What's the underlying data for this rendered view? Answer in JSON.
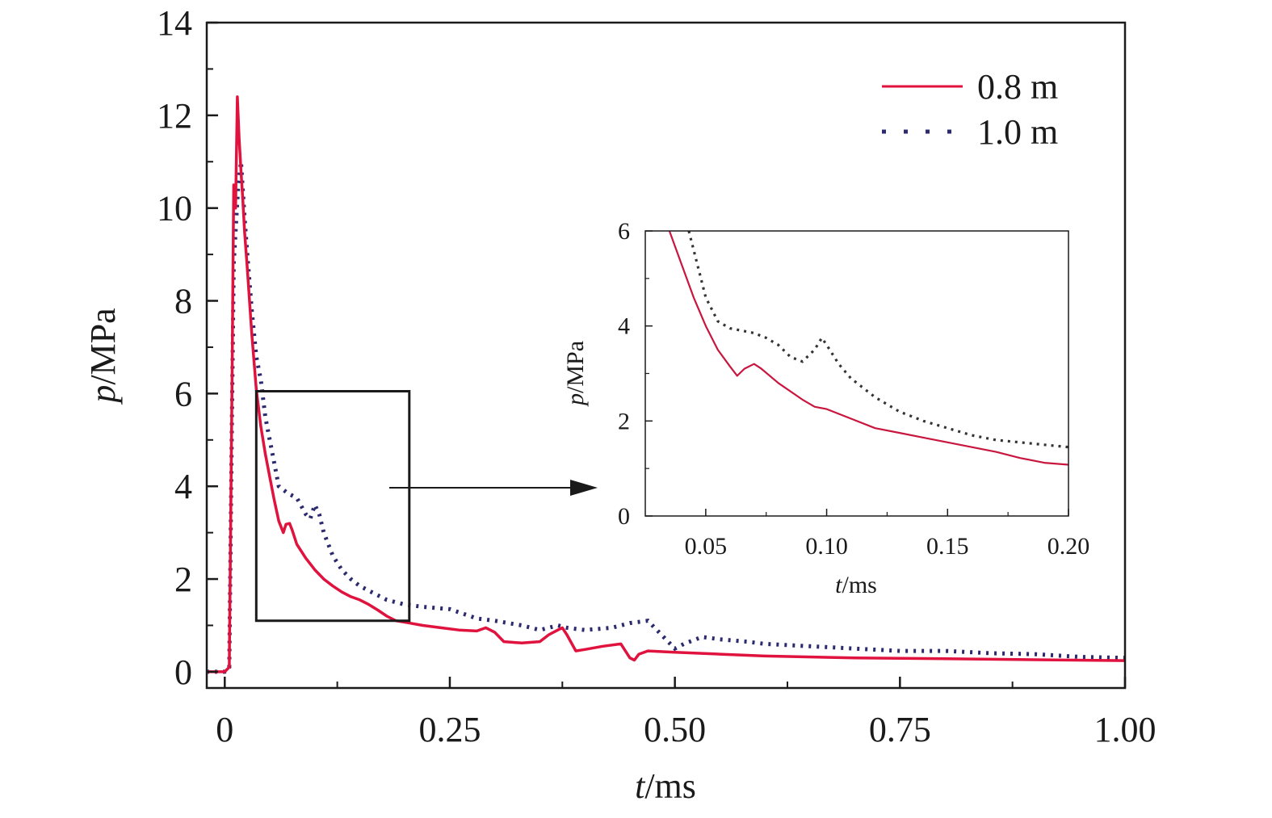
{
  "colors": {
    "series_08": "#e0123e",
    "series_10": "#2b2a6e",
    "inset_08": "#c8163e",
    "inset_10": "#333333",
    "axis": "#1a1a1a"
  },
  "chart_data": [
    {
      "type": "line",
      "xlabel_var": "t",
      "xlabel_unit": "/ms",
      "ylabel_var": "p",
      "ylabel_unit": "/MPa",
      "xlim": [
        -0.02,
        1.0
      ],
      "ylim": [
        -0.35,
        14
      ],
      "xticks": [
        0,
        0.25,
        0.5,
        0.75,
        1.0
      ],
      "xtick_labels": [
        "0",
        "0.25",
        "0.50",
        "0.75",
        "1.00"
      ],
      "yticks": [
        0,
        2,
        4,
        6,
        8,
        10,
        12,
        14
      ],
      "ytick_labels": [
        "0",
        "2",
        "4",
        "6",
        "8",
        "10",
        "12",
        "14"
      ],
      "legend_position": "top-right",
      "zoom_box": {
        "x": [
          0.035,
          0.205
        ],
        "y": [
          1.1,
          6.05
        ]
      },
      "series": [
        {
          "name": "0.8 m",
          "style": "solid",
          "x": [
            -0.02,
            0.0,
            0.005,
            0.008,
            0.01,
            0.012,
            0.014,
            0.016,
            0.018,
            0.02,
            0.022,
            0.025,
            0.03,
            0.035,
            0.04,
            0.045,
            0.05,
            0.055,
            0.06,
            0.065,
            0.068,
            0.072,
            0.075,
            0.08,
            0.09,
            0.1,
            0.11,
            0.12,
            0.13,
            0.14,
            0.15,
            0.16,
            0.17,
            0.18,
            0.19,
            0.2,
            0.22,
            0.24,
            0.26,
            0.28,
            0.29,
            0.3,
            0.31,
            0.33,
            0.35,
            0.36,
            0.37,
            0.375,
            0.38,
            0.39,
            0.4,
            0.42,
            0.44,
            0.45,
            0.455,
            0.46,
            0.47,
            0.5,
            0.55,
            0.6,
            0.7,
            0.8,
            0.9,
            1.0
          ],
          "values": [
            0.0,
            0.0,
            0.1,
            6.0,
            10.5,
            10.0,
            12.4,
            11.5,
            10.8,
            10.2,
            9.5,
            8.7,
            7.3,
            6.1,
            5.3,
            4.7,
            4.2,
            3.7,
            3.25,
            3.0,
            3.18,
            3.2,
            3.05,
            2.75,
            2.45,
            2.2,
            2.0,
            1.85,
            1.72,
            1.62,
            1.55,
            1.45,
            1.33,
            1.2,
            1.1,
            1.07,
            1.0,
            0.95,
            0.9,
            0.88,
            0.95,
            0.85,
            0.65,
            0.62,
            0.65,
            0.8,
            0.9,
            0.95,
            0.8,
            0.45,
            0.48,
            0.55,
            0.6,
            0.3,
            0.25,
            0.38,
            0.45,
            0.42,
            0.38,
            0.34,
            0.3,
            0.28,
            0.26,
            0.24
          ]
        },
        {
          "name": "1.0 m",
          "style": "dotted",
          "x": [
            -0.02,
            0.0,
            0.005,
            0.008,
            0.01,
            0.012,
            0.015,
            0.018,
            0.02,
            0.022,
            0.025,
            0.03,
            0.035,
            0.04,
            0.045,
            0.05,
            0.055,
            0.06,
            0.07,
            0.08,
            0.09,
            0.095,
            0.1,
            0.105,
            0.11,
            0.12,
            0.13,
            0.14,
            0.15,
            0.16,
            0.17,
            0.18,
            0.19,
            0.2,
            0.22,
            0.25,
            0.28,
            0.3,
            0.33,
            0.35,
            0.37,
            0.38,
            0.4,
            0.43,
            0.45,
            0.47,
            0.5,
            0.51,
            0.53,
            0.55,
            0.58,
            0.6,
            0.65,
            0.7,
            0.75,
            0.8,
            0.85,
            0.9,
            0.95,
            1.0
          ],
          "values": [
            0.0,
            0.0,
            0.1,
            5.5,
            8.8,
            9.5,
            10.5,
            11.0,
            10.4,
            9.8,
            9.0,
            7.8,
            6.8,
            6.3,
            5.5,
            5.0,
            4.5,
            4.0,
            3.85,
            3.75,
            3.4,
            3.3,
            3.6,
            3.4,
            3.0,
            2.5,
            2.2,
            2.0,
            1.85,
            1.75,
            1.65,
            1.55,
            1.5,
            1.45,
            1.4,
            1.35,
            1.15,
            1.1,
            1.0,
            0.9,
            1.0,
            0.95,
            0.9,
            0.95,
            1.05,
            1.1,
            0.5,
            0.6,
            0.75,
            0.7,
            0.65,
            0.6,
            0.55,
            0.5,
            0.45,
            0.45,
            0.4,
            0.38,
            0.32,
            0.3
          ]
        }
      ]
    },
    {
      "type": "line",
      "xlabel_var": "t",
      "xlabel_unit": "/ms",
      "ylabel_var": "p",
      "ylabel_unit": "/MPa",
      "xlim": [
        0.025,
        0.2
      ],
      "ylim": [
        0,
        6
      ],
      "xticks": [
        0.05,
        0.1,
        0.15,
        0.2
      ],
      "xtick_labels": [
        "0.05",
        "0.10",
        "0.15",
        "0.20"
      ],
      "yticks": [
        0,
        2,
        4,
        6
      ],
      "ytick_labels": [
        "0",
        "2",
        "4",
        "6"
      ],
      "series": [
        {
          "style": "solid",
          "x": [
            0.035,
            0.04,
            0.045,
            0.05,
            0.055,
            0.06,
            0.063,
            0.066,
            0.07,
            0.073,
            0.08,
            0.09,
            0.095,
            0.1,
            0.11,
            0.12,
            0.13,
            0.14,
            0.15,
            0.16,
            0.17,
            0.18,
            0.19,
            0.2
          ],
          "values": [
            6.0,
            5.3,
            4.6,
            4.0,
            3.5,
            3.15,
            2.95,
            3.1,
            3.2,
            3.1,
            2.8,
            2.45,
            2.3,
            2.25,
            2.05,
            1.85,
            1.75,
            1.65,
            1.55,
            1.45,
            1.35,
            1.22,
            1.12,
            1.08
          ]
        },
        {
          "style": "dotted",
          "x": [
            0.043,
            0.05,
            0.055,
            0.06,
            0.065,
            0.07,
            0.075,
            0.08,
            0.085,
            0.09,
            0.095,
            0.098,
            0.1,
            0.105,
            0.11,
            0.12,
            0.13,
            0.14,
            0.15,
            0.16,
            0.17,
            0.18,
            0.19,
            0.2
          ],
          "values": [
            6.0,
            4.6,
            4.1,
            3.95,
            3.9,
            3.85,
            3.75,
            3.6,
            3.35,
            3.25,
            3.5,
            3.75,
            3.6,
            3.2,
            2.9,
            2.5,
            2.2,
            2.0,
            1.85,
            1.7,
            1.6,
            1.55,
            1.5,
            1.45
          ]
        }
      ]
    }
  ]
}
